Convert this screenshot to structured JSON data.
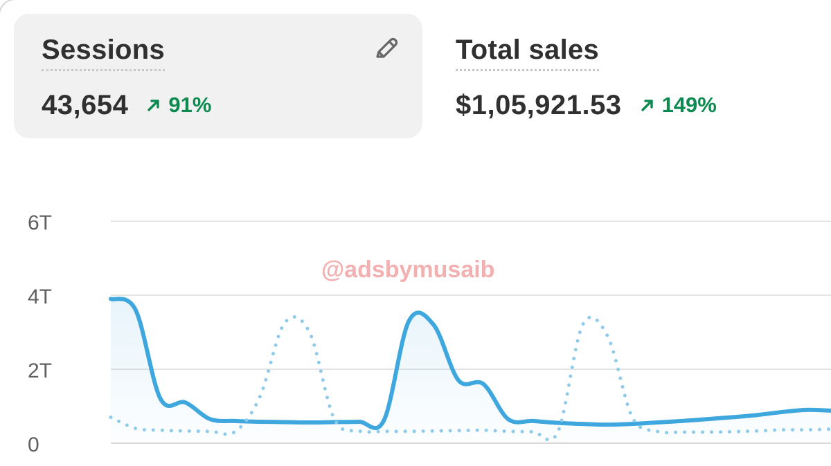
{
  "metrics": [
    {
      "name": "Sessions",
      "value": "43,654",
      "delta": "91%",
      "active": true
    },
    {
      "name": "Total sales",
      "value": "$1,05,921.53",
      "delta": "149%",
      "active": false
    }
  ],
  "icons": {
    "edit": "pencil-icon",
    "trend": "arrow-up-right-icon"
  },
  "colors": {
    "current_series": "#3ea7dd",
    "comparison_series": "#8ecae9",
    "positive_delta": "#0c8a4f",
    "card_background": "#f1f1f1",
    "grid": "#e4e4e4"
  },
  "watermark": "@adsbymusaib",
  "chart_data": {
    "type": "line",
    "ylim": [
      0,
      6000
    ],
    "y_ticks": [
      {
        "value": 0,
        "label": "0"
      },
      {
        "value": 2000,
        "label": "2T"
      },
      {
        "value": 4000,
        "label": "4T"
      },
      {
        "value": 6000,
        "label": "6T"
      }
    ],
    "x": [
      0,
      1,
      2,
      3,
      4,
      5,
      6,
      7,
      8,
      9,
      10,
      11,
      12,
      13,
      14,
      15,
      16,
      17,
      18,
      19,
      20,
      21,
      22,
      23,
      24,
      25,
      26,
      27,
      28,
      29
    ],
    "grid": true,
    "series": [
      {
        "style": "solid",
        "fill": true,
        "values": [
          3900,
          3600,
          1200,
          1100,
          650,
          600,
          580,
          570,
          560,
          570,
          580,
          620,
          3300,
          3200,
          1700,
          1600,
          650,
          600,
          550,
          520,
          500,
          520,
          560,
          600,
          650,
          700,
          760,
          840,
          900,
          880
        ]
      },
      {
        "style": "dotted",
        "fill": false,
        "values": [
          700,
          400,
          350,
          330,
          320,
          310,
          1250,
          3250,
          3000,
          650,
          330,
          320,
          320,
          330,
          340,
          350,
          320,
          310,
          300,
          3200,
          2900,
          700,
          320,
          300,
          300,
          310,
          330,
          360,
          360,
          380
        ]
      }
    ]
  }
}
